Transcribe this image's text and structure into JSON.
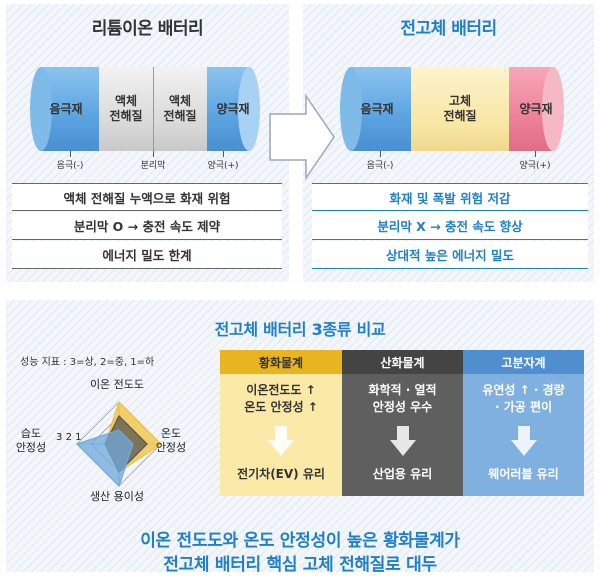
{
  "left": {
    "title": "리튬이온 배터리",
    "anode": "음극재",
    "electrolyte1": [
      "액체",
      "전해질"
    ],
    "electrolyte2": [
      "액체",
      "전해질"
    ],
    "cathode": "양극재",
    "label_anode": "음극(-)",
    "label_separator": "분리막",
    "label_cathode": "양극(+)",
    "rows": [
      "액체 전해질 누액으로 화재 위험",
      "분리막 O → 충전 속도 제약",
      "에너지 밀도 한계"
    ]
  },
  "right": {
    "title": "전고체 배터리",
    "anode": "음극재",
    "electrolyte": [
      "고체",
      "전해질"
    ],
    "cathode": "양극재",
    "label_anode": "음극(-)",
    "label_cathode": "양극(+)",
    "rows": [
      "화재 및 폭발 위험 저감",
      "분리막 X → 충전 속도 향상",
      "상대적 높은 에너지 밀도"
    ]
  },
  "bottom": {
    "title": "전고체 배터리 3종류 비교",
    "scale_note": "성능 지표 : 3=상, 2=중, 1=하",
    "radar": {
      "axes": [
        "이온 전도도",
        "온도 안정성",
        "생산 용이성",
        "습도 안정성"
      ],
      "axis_lines": {
        "ion": [
          "이온 전도도"
        ],
        "temp": [
          "온도",
          "안정성"
        ],
        "prod": [
          "생산 용이성"
        ],
        "humid": [
          "습도",
          "안정성"
        ]
      },
      "scale_labels": [
        "3",
        "2",
        "1"
      ],
      "series": [
        {
          "color": "#f2c23a",
          "values": [
            3,
            3,
            2,
            1
          ]
        },
        {
          "color": "#555555",
          "values": [
            2,
            2,
            2,
            1
          ]
        },
        {
          "color": "#6fa8dc",
          "values": [
            1,
            1,
            3,
            3
          ]
        }
      ]
    },
    "columns": [
      {
        "head": "황화물계",
        "lines": [
          "이온전도도 ↑",
          "온도 안정성 ↑"
        ],
        "result": "전기차(EV) 유리",
        "head_color": "#e8b520",
        "body_color": "#fbe9a8",
        "text_color": "#333333"
      },
      {
        "head": "산화물계",
        "lines": [
          "화학적 · 열적",
          "안정성 우수"
        ],
        "result": "산업용 유리",
        "head_color": "#444444",
        "body_color": "#5f5f5f",
        "text_color": "#ffffff"
      },
      {
        "head": "고분자계",
        "lines": [
          "유연성 ↑ · 경량",
          "· 가공 편이"
        ],
        "result": "웨어러블 유리",
        "head_color": "#4f8fcf",
        "body_color": "#7fb0e0",
        "text_color": "#ffffff"
      }
    ],
    "conclusion": [
      "이온 전도도와 온도 안정성이 높은 황화물계가",
      "전고체 배터리 핵심 고체 전해질로 대두"
    ]
  }
}
